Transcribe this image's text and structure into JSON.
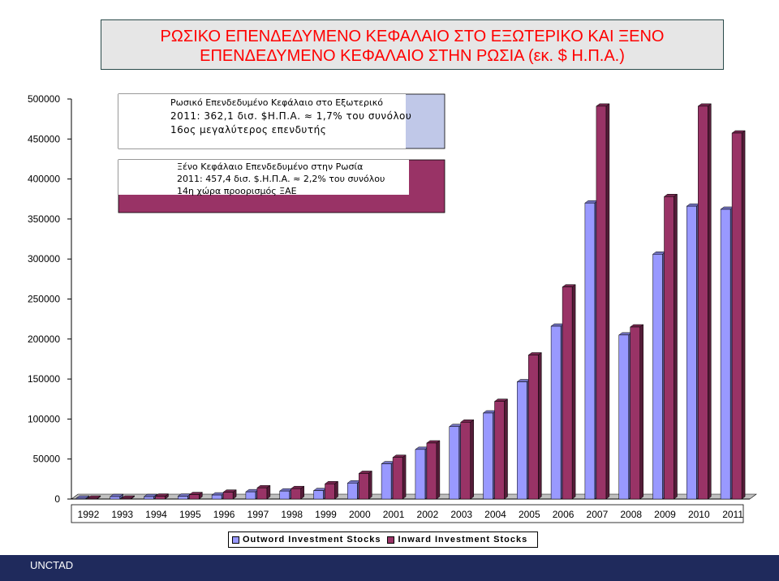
{
  "title": {
    "line1": "ΡΩΣΙΚΟ ΕΠΕΝΔΕΔΥΜΕΝΟ ΚΕΦΑΛΑΙΟ ΣΤΟ ΕΞΩΤΕΡΙΚΟ ΚΑΙ ΞΕΝΟ",
    "line2": "ΕΠΕΝΔΕΔΥΜΕΝΟ ΚΕΦΑΛΑΙΟ ΣΤΗΝ ΡΩΣΙΑ (εκ. $ Η.Π.Α.)",
    "color": "#ff0000"
  },
  "annotations": {
    "outward": {
      "line1": "Ρωσικό Επενδεδυμένο Κεφάλαιο στο Εξωτερικό",
      "line2": "2011: 362,1 δισ. $Η.Π.Α. ≈ 1,7% του συνόλου",
      "line3": "16ος μεγαλύτερος επενδυτής"
    },
    "inward": {
      "line1": "Ξένο Κεφάλαιο Επενδεδυμένο στην Ρωσία",
      "line2": "2011: 457,4 δισ. $.Η.Π.Α. ≈ 2,2% του συνόλου",
      "line3": "14η χώρα προορισμός ΞΑΕ"
    }
  },
  "footer": {
    "text": "UNCTAD",
    "color": "#1f2a5c"
  },
  "chart_data": {
    "type": "bar",
    "categories": [
      "1992",
      "1993",
      "1994",
      "1995",
      "1996",
      "1997",
      "1998",
      "1999",
      "2000",
      "2001",
      "2002",
      "2003",
      "2004",
      "2005",
      "2006",
      "2007",
      "2008",
      "2009",
      "2010",
      "2011"
    ],
    "series": [
      {
        "name": "Outword Investment Stocks",
        "color": "#9999ff",
        "values": [
          1000,
          3000,
          3000,
          3500,
          5000,
          9000,
          10000,
          10500,
          20000,
          44000,
          62000,
          90500,
          107500,
          146500,
          216000,
          370000,
          205000,
          306000,
          366000,
          362100
        ]
      },
      {
        "name": "Inward Investment Stocks",
        "color": "#993366",
        "values": [
          1000,
          1000,
          3500,
          5500,
          8500,
          14000,
          13000,
          19000,
          32000,
          52000,
          70000,
          96000,
          122000,
          180000,
          265000,
          491000,
          215000,
          378000,
          491000,
          457400
        ]
      }
    ],
    "yticks": [
      0,
      50000,
      100000,
      150000,
      200000,
      250000,
      300000,
      350000,
      400000,
      450000,
      500000
    ],
    "ylim": [
      0,
      500000
    ],
    "xlabel": "",
    "ylabel": "",
    "legend": "bottom",
    "grid": false
  }
}
